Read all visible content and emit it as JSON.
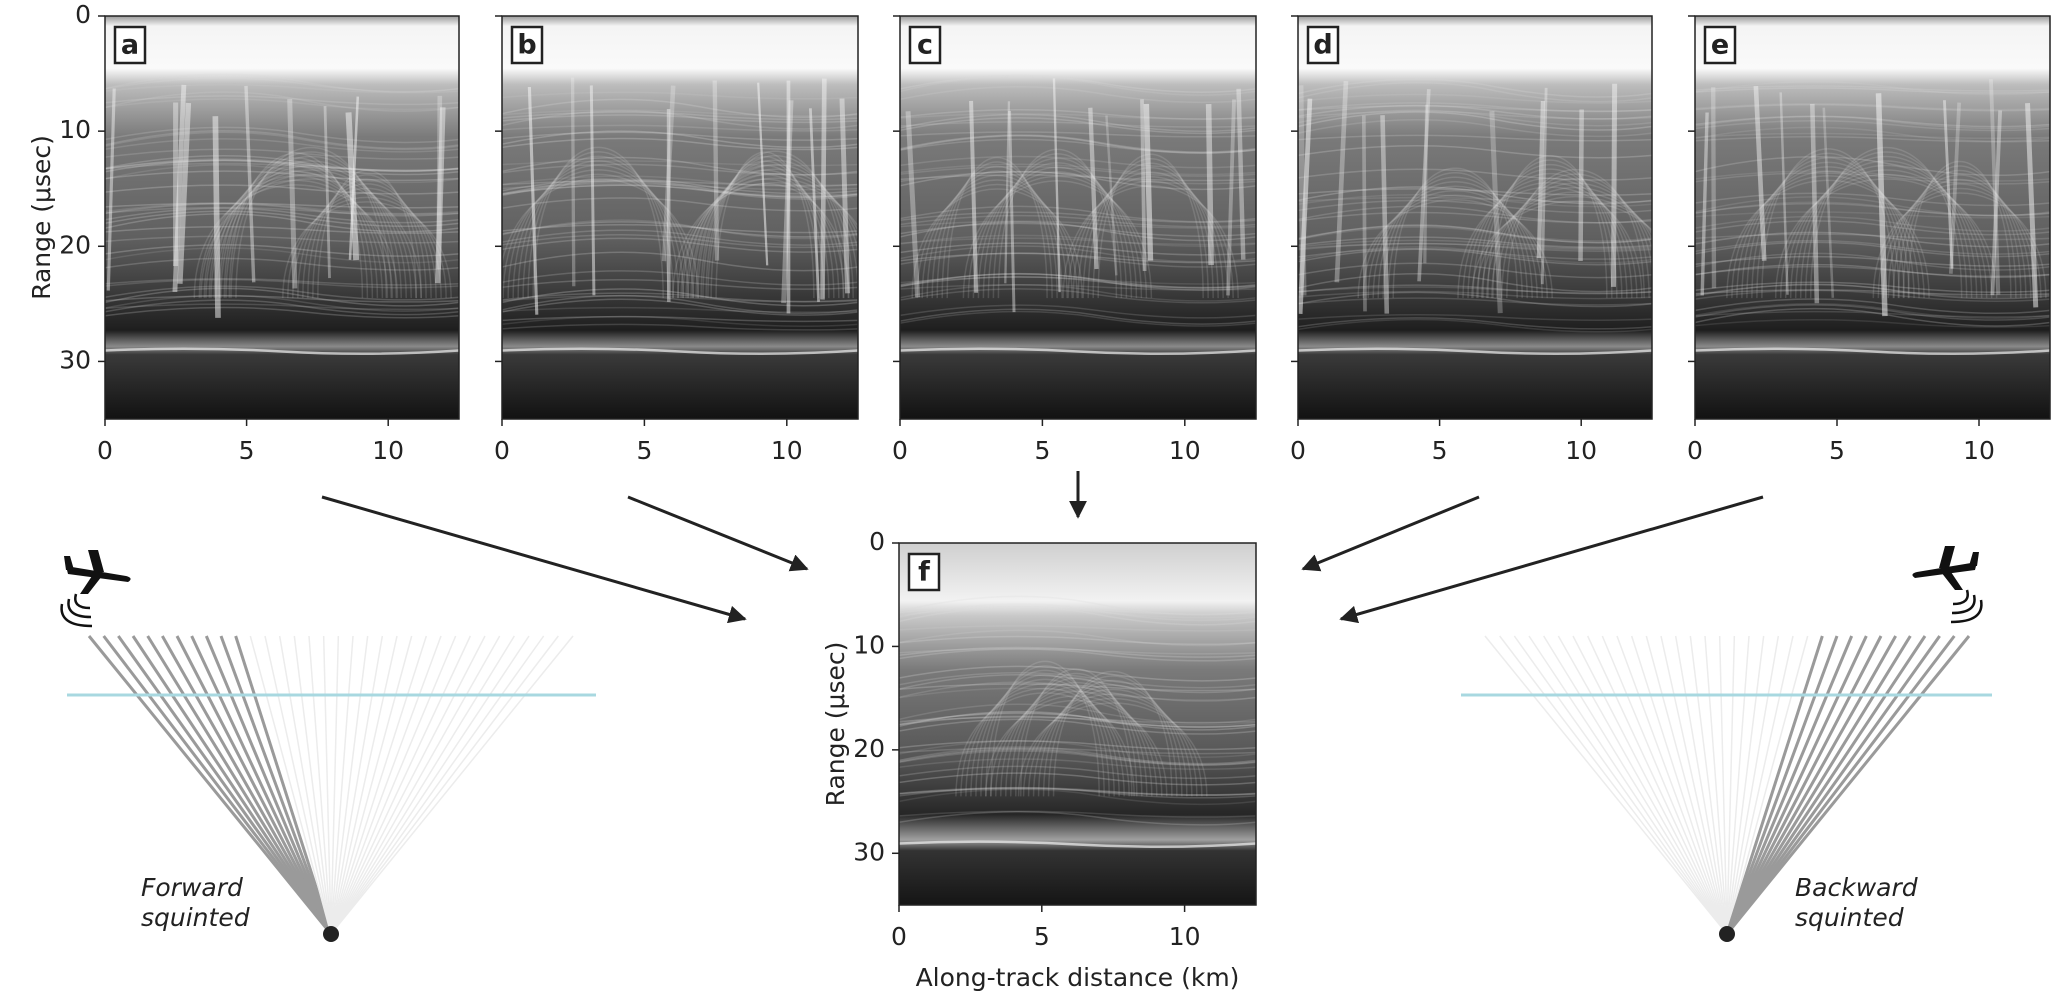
{
  "chart_data": [
    {
      "type": "radargram",
      "label": "a",
      "ylabel": "Range (μsec)",
      "xlim": [
        0,
        12.5
      ],
      "ylim": [
        0,
        35
      ],
      "xticks": [
        0,
        5,
        10
      ],
      "yticks": [
        0,
        10,
        20,
        30
      ],
      "yticklabels": true
    },
    {
      "type": "radargram",
      "label": "b",
      "xlim": [
        0,
        12.5
      ],
      "ylim": [
        0,
        35
      ],
      "xticks": [
        0,
        5,
        10
      ],
      "yticks": [
        0,
        10,
        20,
        30
      ],
      "yticklabels": false
    },
    {
      "type": "radargram",
      "label": "c",
      "xlim": [
        0,
        12.5
      ],
      "ylim": [
        0,
        35
      ],
      "xticks": [
        0,
        5,
        10
      ],
      "yticks": [
        0,
        10,
        20,
        30
      ],
      "yticklabels": false
    },
    {
      "type": "radargram",
      "label": "d",
      "xlim": [
        0,
        12.5
      ],
      "ylim": [
        0,
        35
      ],
      "xticks": [
        0,
        5,
        10
      ],
      "yticks": [
        0,
        10,
        20,
        30
      ],
      "yticklabels": false
    },
    {
      "type": "radargram",
      "label": "e",
      "xlim": [
        0,
        12.5
      ],
      "ylim": [
        0,
        35
      ],
      "xticks": [
        0,
        5,
        10
      ],
      "yticks": [
        0,
        10,
        20,
        30
      ],
      "yticklabels": false
    },
    {
      "type": "radargram",
      "label": "f",
      "ylabel": "Range (μsec)",
      "xlabel": "Along-track distance (km)",
      "xlim": [
        0,
        12.5
      ],
      "ylim": [
        0,
        35
      ],
      "xticks": [
        0,
        5,
        10
      ],
      "yticks": [
        0,
        10,
        20,
        30
      ],
      "yticklabels": true
    }
  ],
  "diagrams": [
    {
      "text": [
        "Forward",
        "squinted"
      ]
    },
    {
      "text": [
        "Backward",
        "squinted"
      ]
    }
  ]
}
